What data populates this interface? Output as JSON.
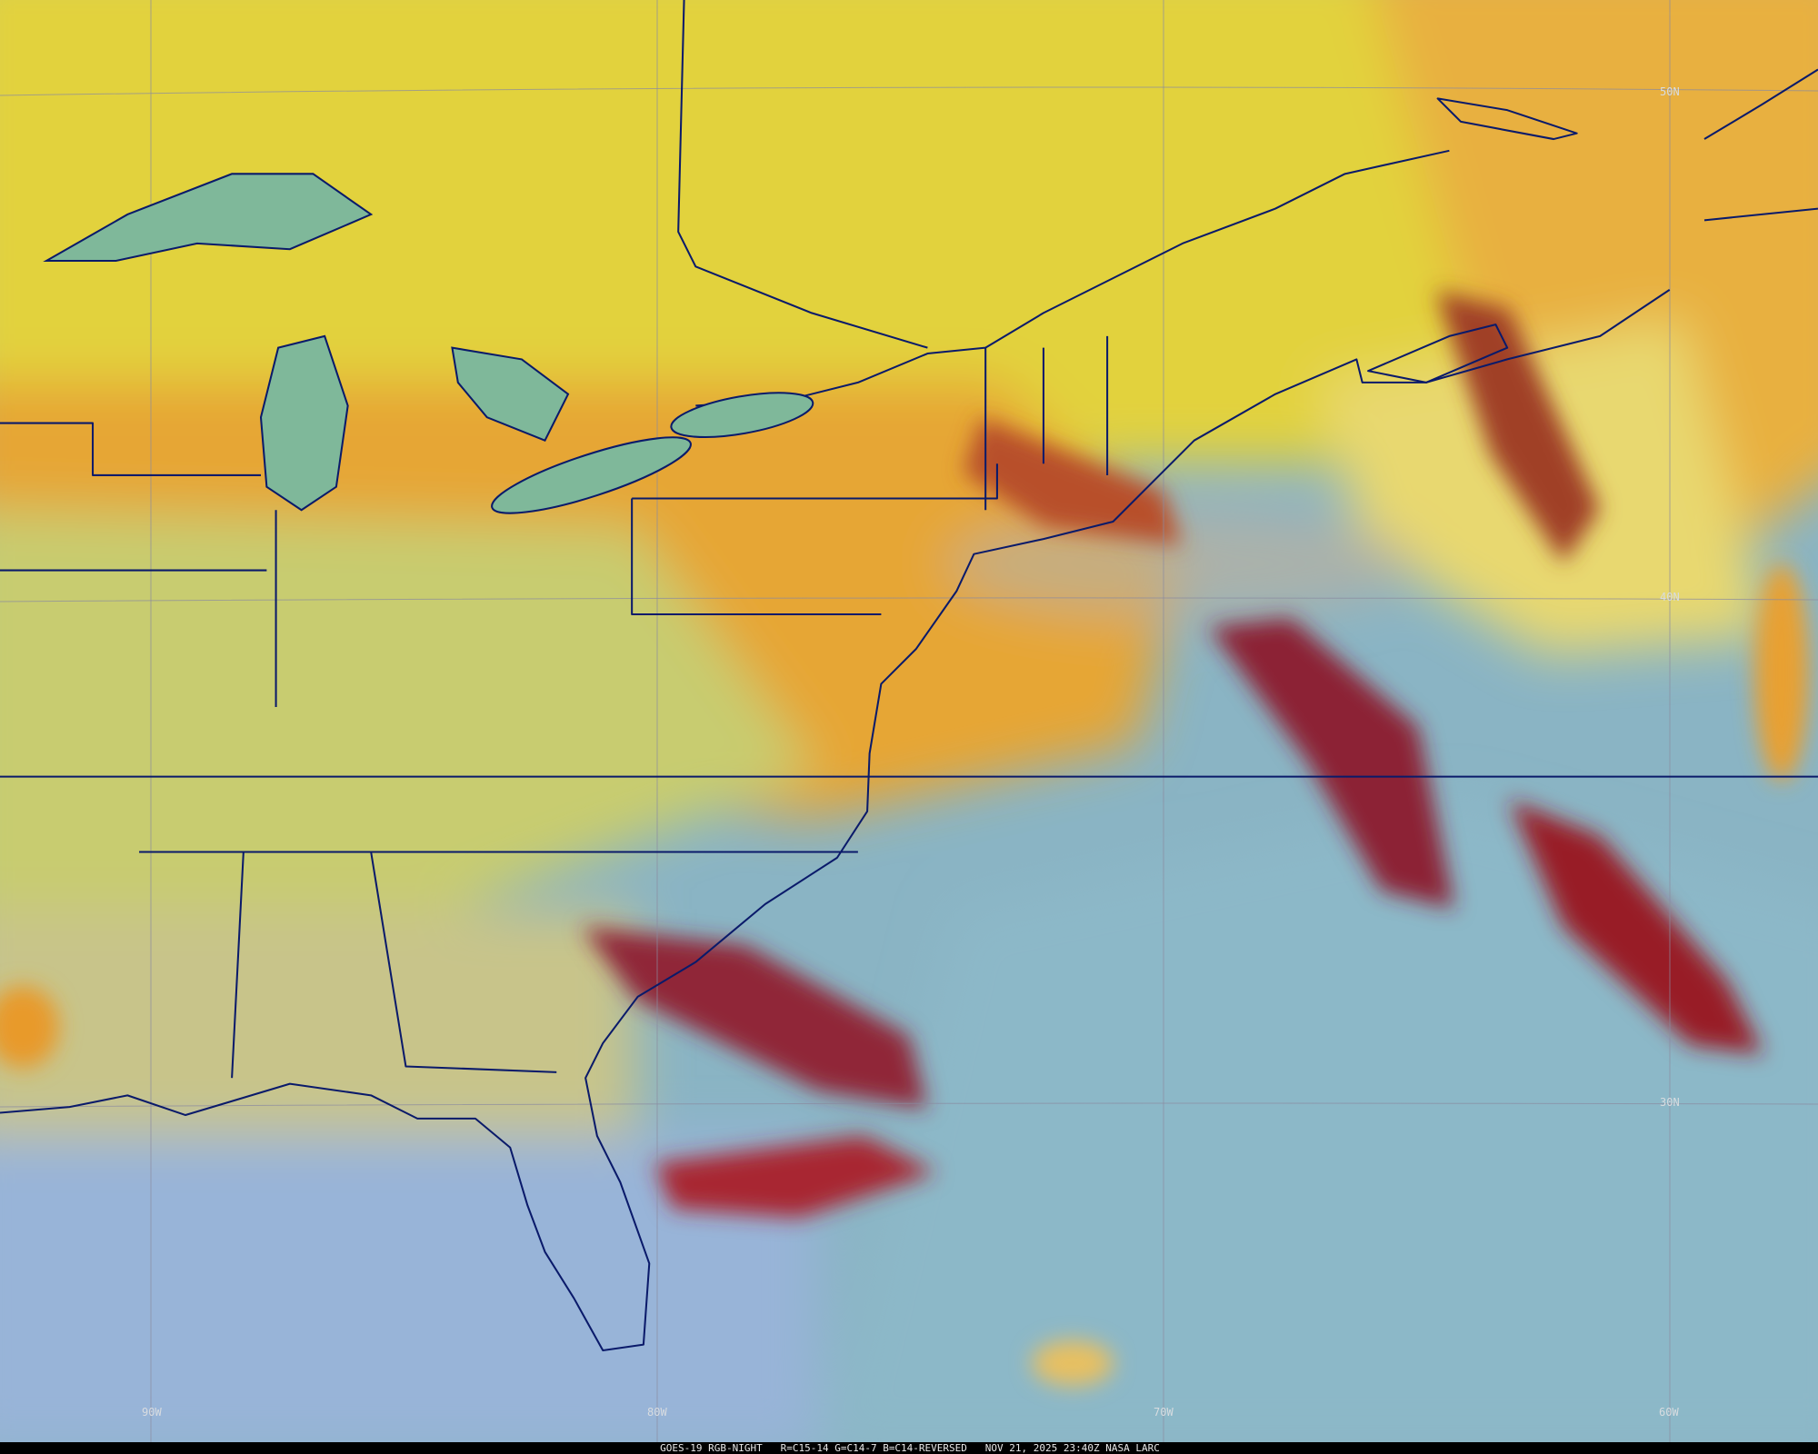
{
  "latitude_labels": [
    "50N",
    "40N",
    "30N"
  ],
  "longitude_labels": [
    "90W",
    "80W",
    "70W",
    "60W"
  ],
  "caption": "GOES-19 RGB-NIGHT   R=C15-14 G=C14-7 B=C14-REVERSED   NOV 21, 2025 23:40Z NASA LARC"
}
